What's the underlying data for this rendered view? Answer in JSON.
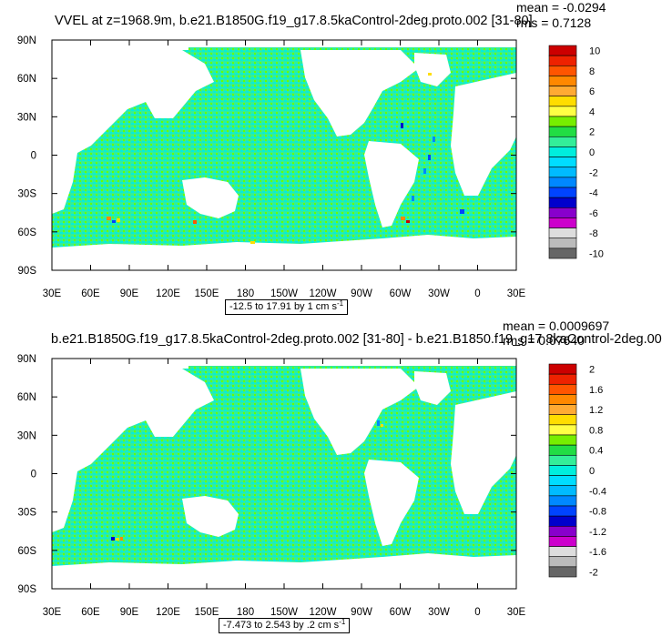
{
  "colors": {
    "ocean_bg": "#33ee99",
    "speckle_a": "#00eedd",
    "speckle_b": "#66ff00",
    "land": "#ffffff"
  },
  "chart_data": [
    {
      "type": "heatmap",
      "title": "VVEL at z=1968.9m, b.e21.B1850G.f19_g17.8.5kaControl-2deg.proto.002 [31-80]",
      "mean_label": "mean = -0.0294",
      "rms_label": "rms = 0.7128",
      "range_label": "-12.5 to 17.91 by 1 cm s",
      "units_superscript": "-1",
      "x_ticks": [
        "30E",
        "60E",
        "90E",
        "120E",
        "150E",
        "180",
        "150W",
        "120W",
        "90W",
        "60W",
        "30W",
        "0",
        "30E"
      ],
      "y_ticks": [
        "90N",
        "60N",
        "30N",
        "0",
        "30S",
        "60S",
        "90S"
      ],
      "colorbar_labels": [
        "10",
        "8",
        "6",
        "4",
        "2",
        "0",
        "-2",
        "-4",
        "-6",
        "-8",
        "-10"
      ],
      "colorbar_colors": [
        "#cc0000",
        "#ee2200",
        "#ff5500",
        "#ff8800",
        "#ffaa33",
        "#ffdd00",
        "#ffff44",
        "#77ee00",
        "#22dd44",
        "#33ee99",
        "#00eedd",
        "#00ddff",
        "#00bbff",
        "#0088ff",
        "#0044ff",
        "#0000cc",
        "#8800cc",
        "#cc00cc",
        "#dddddd",
        "#bbbbbb",
        "#666666"
      ],
      "grid": false
    },
    {
      "type": "heatmap",
      "title": "b.e21.B1850G.f19_g17.8.5kaControl-2deg.proto.002 [31-80] - b.e21.B1850.f19_g17.8kaControl-2deg.00",
      "mean_label": "mean = 0.0009697",
      "rms_label": "rms = 0.07640",
      "range_label": "-7.473 to 2.543 by .2 cm s",
      "units_superscript": "-1",
      "x_ticks": [
        "30E",
        "60E",
        "90E",
        "120E",
        "150E",
        "180",
        "150W",
        "120W",
        "90W",
        "60W",
        "30W",
        "0",
        "30E"
      ],
      "y_ticks": [
        "90N",
        "60N",
        "30N",
        "0",
        "30S",
        "60S",
        "90S"
      ],
      "colorbar_labels": [
        "2",
        "1.6",
        "1.2",
        "0.8",
        "0.4",
        "0",
        "-0.4",
        "-0.8",
        "-1.2",
        "-1.6",
        "-2"
      ],
      "colorbar_colors": [
        "#cc0000",
        "#ee2200",
        "#ff5500",
        "#ff8800",
        "#ffaa33",
        "#ffdd00",
        "#ffff44",
        "#77ee00",
        "#22dd44",
        "#33ee99",
        "#00eedd",
        "#00ddff",
        "#00bbff",
        "#0088ff",
        "#0044ff",
        "#0000cc",
        "#8800cc",
        "#cc00cc",
        "#dddddd",
        "#bbbbbb",
        "#666666"
      ],
      "grid": false
    }
  ]
}
